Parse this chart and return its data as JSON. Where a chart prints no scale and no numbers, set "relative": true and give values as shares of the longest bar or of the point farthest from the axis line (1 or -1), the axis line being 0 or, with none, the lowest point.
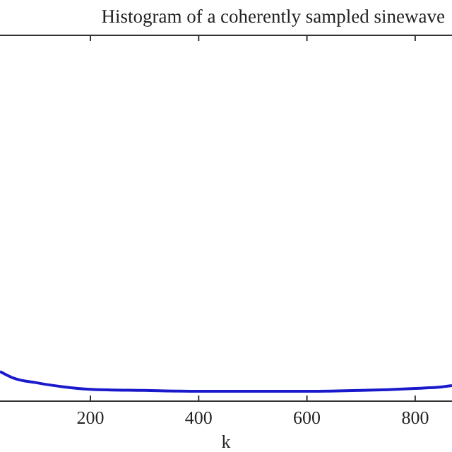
{
  "chart_data": {
    "type": "line",
    "title": "Histogram of a coherently sampled sinewave",
    "xlabel": "k",
    "relative": true,
    "x": [
      33,
      60,
      100,
      150,
      200,
      300,
      400,
      500,
      600,
      700,
      800,
      850,
      868
    ],
    "series": [
      {
        "color": "#1a1acc",
        "values": [
          1.0,
          0.76,
          0.62,
          0.48,
          0.4,
          0.36,
          0.33,
          0.33,
          0.33,
          0.36,
          0.43,
          0.48,
          0.52
        ]
      }
    ],
    "xlim": [
      33,
      868
    ],
    "xticks": [
      200,
      400,
      600,
      800
    ]
  }
}
